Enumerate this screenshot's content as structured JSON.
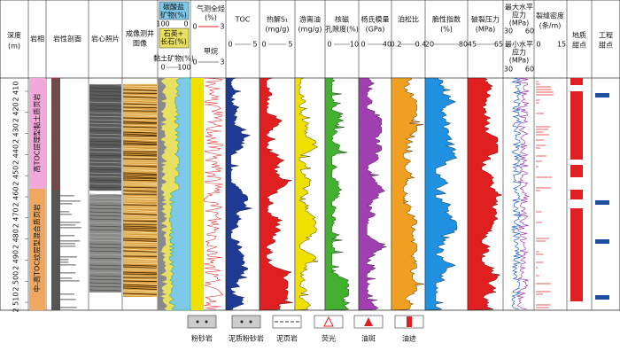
{
  "header": {
    "depth": [
      "深度",
      "(m)"
    ],
    "facies": "岩相",
    "lithology": "岩性剖面",
    "core": "岩心照片",
    "image": [
      "成像测井",
      "图像"
    ]
  },
  "mineral": {
    "carbonate": [
      "碳酸盐",
      "矿物(%)"
    ],
    "carbonate_scale": [
      "100",
      "0"
    ],
    "quartz": [
      "石英+",
      "长石(%)"
    ],
    "clay": "黏土矿物(%)",
    "clay_scale": [
      "0",
      "100"
    ]
  },
  "gas": {
    "total": [
      "气测全烃",
      "(%)"
    ],
    "total_scale": [
      "0",
      "3"
    ],
    "methane": "甲烷",
    "methane_scale": [
      "0",
      "3"
    ]
  },
  "tracks": [
    {
      "title": [
        "TOC"
      ],
      "scale": [
        "0",
        "5"
      ]
    },
    {
      "title": [
        "热解S₁",
        "(mg/g)"
      ],
      "scale": [
        "0",
        "5"
      ]
    },
    {
      "title": [
        "游离油",
        "(mg/g)"
      ],
      "scale": []
    },
    {
      "title": [
        "核磁",
        "孔隙度(%)"
      ],
      "scale": [
        "0",
        "10"
      ]
    },
    {
      "title": [
        "杨氏模量",
        "(GPa)"
      ],
      "scale": [
        "0",
        "40"
      ]
    },
    {
      "title": [
        "泊松比"
      ],
      "scale": [
        "0.2",
        "0.4"
      ]
    },
    {
      "title": [
        "脆性指数",
        "(%)"
      ],
      "scale": [
        "20",
        "80"
      ]
    },
    {
      "title": [
        "破裂压力",
        "(MPa)"
      ],
      "scale": [
        "45",
        "65"
      ]
    }
  ],
  "stress": {
    "max": [
      "最大水平",
      "应力",
      "(MPa)"
    ],
    "max_scale": [
      "30",
      "60"
    ],
    "min": [
      "最小水平",
      "应力",
      "(MPa)"
    ],
    "min_scale": [
      "30",
      "60"
    ]
  },
  "fracture": {
    "title": [
      "裂缝密度",
      "(条/m)"
    ],
    "scale": [
      "0",
      "15"
    ]
  },
  "sweet_geo": [
    "地质",
    "甜点"
  ],
  "sweet_eng": [
    "工程",
    "甜点"
  ],
  "depth_ticks": [
    "2 410",
    "2 420",
    "2 430",
    "2 440",
    "2 450",
    "2 460",
    "2 470",
    "2 480",
    "2 490",
    "2 500",
    "2 510"
  ],
  "facies_zones": [
    "高TOC层理型黏土质页岩",
    "中-高TOC纹层型混合质页岩"
  ],
  "legend": [
    "粉砂岩",
    "泥质粉砂岩",
    "泥页岩",
    "荧光",
    "油斑",
    "油迹"
  ]
}
